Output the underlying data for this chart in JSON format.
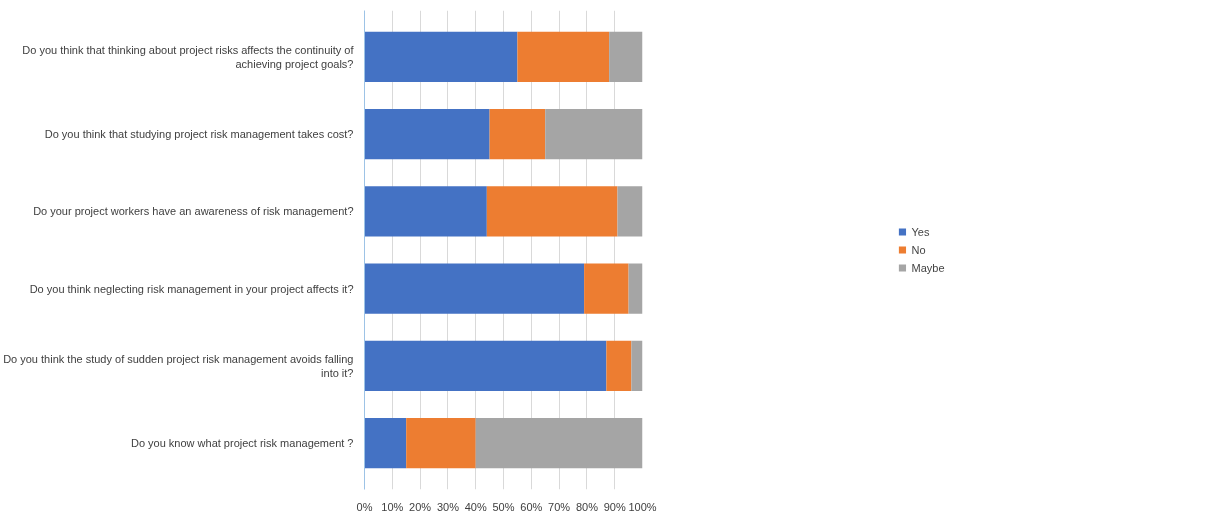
{
  "chart_data": {
    "type": "bar",
    "orientation": "horizontal",
    "stacked": true,
    "categories": [
      "Do you think that thinking about project risks affects the continuity of achieving project goals?",
      "Do you think that studying project risk management takes cost?",
      "Do your project workers have an awareness of risk management?",
      "Do you think neglecting risk management in your project affects it?",
      "Do you think the study of sudden project risk management avoids falling into it?",
      "Do you know what project risk management ?"
    ],
    "series": [
      {
        "name": "Yes",
        "color": "#4472c4",
        "values": [
          55,
          45,
          44,
          79,
          87,
          15
        ]
      },
      {
        "name": "No",
        "color": "#ed7d31",
        "values": [
          33,
          20,
          47,
          16,
          9,
          25
        ]
      },
      {
        "name": "Maybe",
        "color": "#a5a5a5",
        "values": [
          12,
          35,
          9,
          5,
          4,
          60
        ]
      }
    ],
    "xlim": [
      0,
      100
    ],
    "xticks": [
      {
        "value": 0,
        "label": "0%"
      },
      {
        "value": 10,
        "label": "10%"
      },
      {
        "value": 20,
        "label": "20%"
      },
      {
        "value": 30,
        "label": "30%"
      },
      {
        "value": 40,
        "label": "40%"
      },
      {
        "value": 50,
        "label": "50%"
      },
      {
        "value": 60,
        "label": "60%"
      },
      {
        "value": 70,
        "label": "70%"
      },
      {
        "value": 80,
        "label": "80%"
      },
      {
        "value": 90,
        "label": "90%"
      },
      {
        "value": 100,
        "label": "100%"
      }
    ],
    "grid": "x",
    "legend": "right"
  }
}
